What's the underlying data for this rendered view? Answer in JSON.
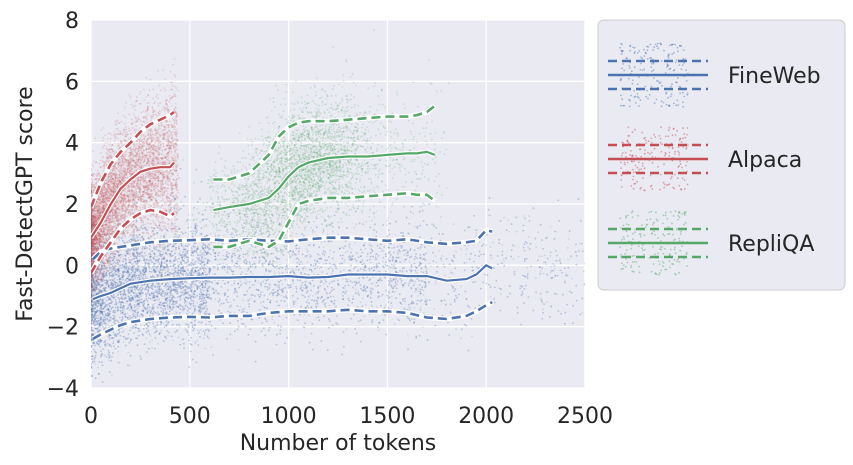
{
  "chart_data": {
    "type": "scatter",
    "title": "",
    "xlabel": "Number of tokens",
    "ylabel": "Fast-DetectGPT score",
    "xlim": [
      0,
      2500
    ],
    "ylim": [
      -4,
      8
    ],
    "xticks": [
      0,
      500,
      1000,
      1500,
      2000,
      2500
    ],
    "yticks": [
      -4,
      -2,
      0,
      2,
      4,
      6,
      8
    ],
    "x_tick_labels": [
      "0",
      "500",
      "1000",
      "1500",
      "2000",
      "2500"
    ],
    "y_tick_labels": [
      "−4",
      "−2",
      "0",
      "2",
      "4",
      "6",
      "8"
    ],
    "grid": true,
    "background": "#eaeaf2",
    "legend_position": "outside-right",
    "series": [
      {
        "name": "FineWeb",
        "color": "#4c72b0",
        "point_cloud": {
          "x_range": [
            0,
            2500
          ],
          "y_center": -0.5,
          "y_spread": 1.2,
          "density": "high"
        },
        "mean": {
          "x": [
            10,
            50,
            100,
            150,
            200,
            300,
            400,
            500,
            600,
            700,
            800,
            900,
            1000,
            1100,
            1200,
            1300,
            1400,
            1500,
            1600,
            1700,
            1800,
            1900,
            1950,
            2000,
            2030
          ],
          "y": [
            -1.1,
            -1.0,
            -0.9,
            -0.75,
            -0.6,
            -0.5,
            -0.45,
            -0.42,
            -0.4,
            -0.4,
            -0.38,
            -0.38,
            -0.35,
            -0.4,
            -0.38,
            -0.3,
            -0.3,
            -0.3,
            -0.35,
            -0.35,
            -0.5,
            -0.45,
            -0.3,
            0.0,
            -0.1
          ]
        },
        "upper": {
          "x": [
            10,
            50,
            100,
            150,
            200,
            300,
            400,
            500,
            600,
            700,
            800,
            900,
            1000,
            1100,
            1200,
            1300,
            1400,
            1500,
            1600,
            1700,
            1800,
            1900,
            1950,
            2000,
            2030
          ],
          "y": [
            0.2,
            0.45,
            0.55,
            0.6,
            0.65,
            0.75,
            0.8,
            0.82,
            0.85,
            0.8,
            0.85,
            0.8,
            0.78,
            0.85,
            0.9,
            0.9,
            0.85,
            0.8,
            0.85,
            0.75,
            0.7,
            0.75,
            0.8,
            1.15,
            1.1
          ]
        },
        "lower": {
          "x": [
            10,
            50,
            100,
            150,
            200,
            300,
            400,
            500,
            600,
            700,
            800,
            900,
            1000,
            1100,
            1200,
            1300,
            1400,
            1500,
            1600,
            1700,
            1800,
            1900,
            1950,
            2000,
            2030
          ],
          "y": [
            -2.4,
            -2.25,
            -2.1,
            -1.95,
            -1.85,
            -1.75,
            -1.7,
            -1.68,
            -1.7,
            -1.65,
            -1.65,
            -1.55,
            -1.5,
            -1.5,
            -1.5,
            -1.45,
            -1.5,
            -1.5,
            -1.55,
            -1.7,
            -1.75,
            -1.65,
            -1.5,
            -1.3,
            -1.2
          ]
        }
      },
      {
        "name": "Alpaca",
        "color": "#c44e52",
        "point_cloud": {
          "x_range": [
            0,
            450
          ],
          "y_center": 2.0,
          "y_spread": 1.6,
          "density": "high"
        },
        "mean": {
          "x": [
            0,
            50,
            100,
            150,
            200,
            250,
            300,
            350,
            400,
            420
          ],
          "y": [
            0.9,
            1.4,
            2.0,
            2.5,
            2.8,
            3.05,
            3.15,
            3.2,
            3.2,
            3.35
          ]
        },
        "upper": {
          "x": [
            0,
            50,
            100,
            150,
            200,
            250,
            300,
            350,
            400,
            420
          ],
          "y": [
            1.9,
            2.7,
            3.3,
            3.7,
            4.0,
            4.35,
            4.6,
            4.75,
            4.9,
            5.0
          ]
        },
        "lower": {
          "x": [
            0,
            50,
            100,
            150,
            200,
            250,
            300,
            350,
            400,
            420
          ],
          "y": [
            -0.25,
            0.3,
            0.75,
            1.2,
            1.5,
            1.7,
            1.8,
            1.75,
            1.6,
            1.7
          ]
        }
      },
      {
        "name": "RepliQA",
        "color": "#55a868",
        "point_cloud": {
          "x_range": [
            600,
            1800
          ],
          "y_center": 3.5,
          "y_spread": 1.1,
          "density": "medium"
        },
        "mean": {
          "x": [
            620,
            700,
            800,
            900,
            950,
            1000,
            1050,
            1100,
            1200,
            1300,
            1400,
            1500,
            1600,
            1650,
            1700,
            1740
          ],
          "y": [
            1.8,
            1.9,
            2.0,
            2.2,
            2.5,
            2.9,
            3.2,
            3.35,
            3.5,
            3.55,
            3.55,
            3.6,
            3.65,
            3.65,
            3.7,
            3.6
          ]
        },
        "upper": {
          "x": [
            620,
            700,
            800,
            900,
            950,
            1000,
            1050,
            1100,
            1200,
            1300,
            1400,
            1500,
            1600,
            1650,
            1700,
            1740
          ],
          "y": [
            2.8,
            2.8,
            3.0,
            3.6,
            4.2,
            4.5,
            4.65,
            4.7,
            4.7,
            4.75,
            4.8,
            4.85,
            4.85,
            4.9,
            5.0,
            5.2
          ]
        },
        "lower": {
          "x": [
            620,
            700,
            800,
            900,
            950,
            1000,
            1050,
            1100,
            1200,
            1300,
            1400,
            1500,
            1600,
            1650,
            1700,
            1740
          ],
          "y": [
            0.6,
            0.6,
            0.8,
            0.6,
            0.8,
            1.4,
            2.0,
            2.1,
            2.2,
            2.2,
            2.25,
            2.3,
            2.35,
            2.3,
            2.3,
            2.1
          ]
        }
      }
    ]
  }
}
